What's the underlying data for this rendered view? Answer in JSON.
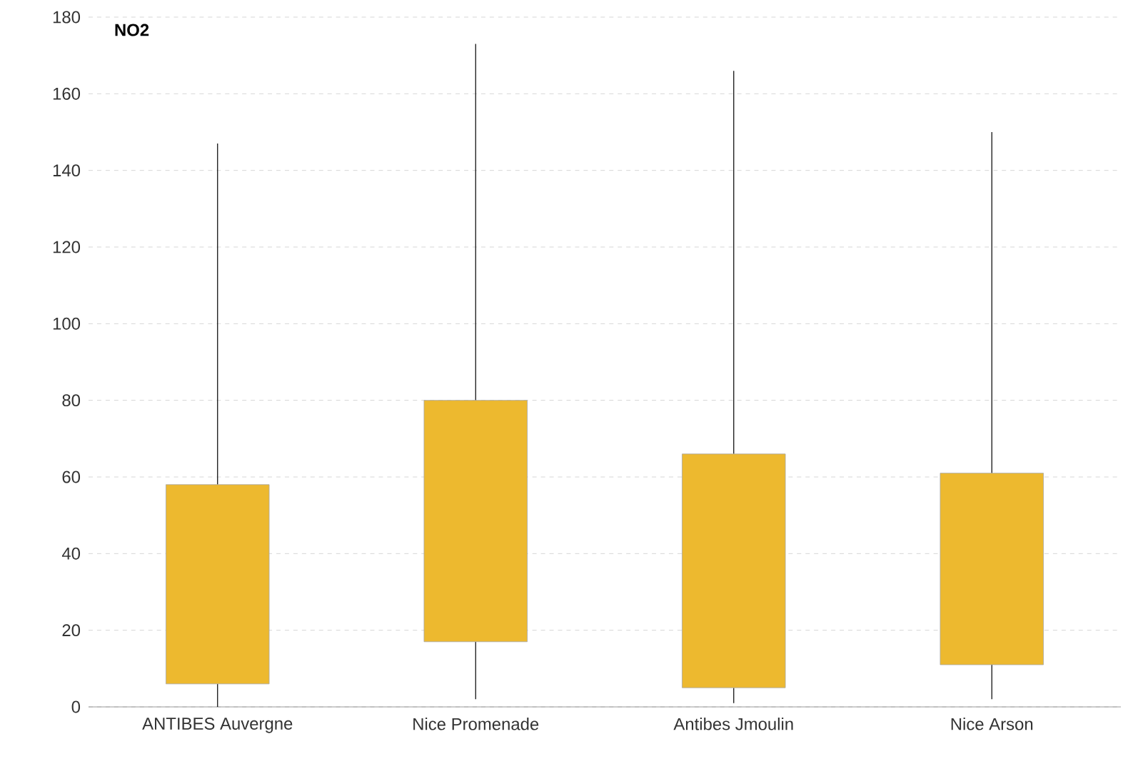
{
  "chart_data": {
    "type": "candlestick",
    "title": "NO2",
    "categories": [
      "ANTIBES Auvergne",
      "Nice Promenade",
      "Antibes Jmoulin",
      "Nice Arson"
    ],
    "ohlc": [
      [
        6,
        147,
        0,
        58
      ],
      [
        17,
        173,
        2,
        80
      ],
      [
        5,
        166,
        1,
        66
      ],
      [
        11,
        150,
        2,
        61
      ]
    ],
    "color": "#edb92f",
    "ylim": [
      0,
      180
    ],
    "yticks": [
      0,
      20,
      40,
      60,
      80,
      100,
      120,
      140,
      160,
      180
    ],
    "grid": "y"
  }
}
